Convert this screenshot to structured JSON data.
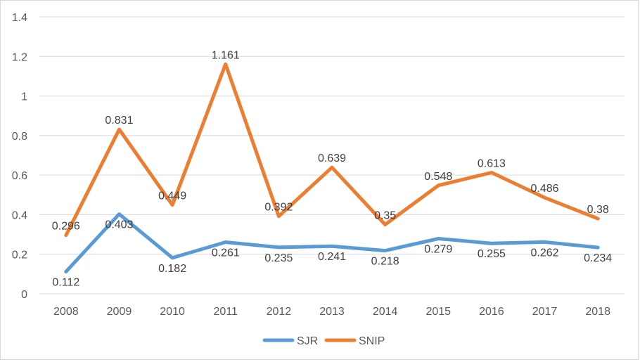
{
  "chart_data": {
    "type": "line",
    "title": "",
    "xlabel": "",
    "ylabel": "",
    "categories": [
      "2008",
      "2009",
      "2010",
      "2011",
      "2012",
      "2013",
      "2014",
      "2015",
      "2016",
      "2017",
      "2018"
    ],
    "ylim": [
      0,
      1.4
    ],
    "yticks": [
      0,
      0.2,
      0.4,
      0.6,
      0.8,
      1,
      1.2,
      1.4
    ],
    "ytick_labels": [
      "0",
      "0.2",
      "0.4",
      "0.6",
      "0.8",
      "1",
      "1.2",
      "1.4"
    ],
    "grid": "horizontal",
    "legend_position": "bottom",
    "series": [
      {
        "name": "SJR",
        "color": "#5B9BD5",
        "values": [
          0.112,
          0.403,
          0.182,
          0.261,
          0.235,
          0.241,
          0.218,
          0.279,
          0.255,
          0.262,
          0.234
        ],
        "labels": [
          "0.112",
          "0.403",
          "0.182",
          "0.261",
          "0.235",
          "0.241",
          "0.218",
          "0.279",
          "0.255",
          "0.262",
          "0.234"
        ]
      },
      {
        "name": "SNIP",
        "color": "#ED7D31",
        "values": [
          0.296,
          0.831,
          0.449,
          1.161,
          0.392,
          0.639,
          0.35,
          0.548,
          0.613,
          0.486,
          0.38
        ],
        "labels": [
          "0.296",
          "0.831",
          "0.449",
          "1.161",
          "0.392",
          "0.639",
          "0.35",
          "0.548",
          "0.613",
          "0.486",
          "0.38"
        ]
      }
    ]
  }
}
